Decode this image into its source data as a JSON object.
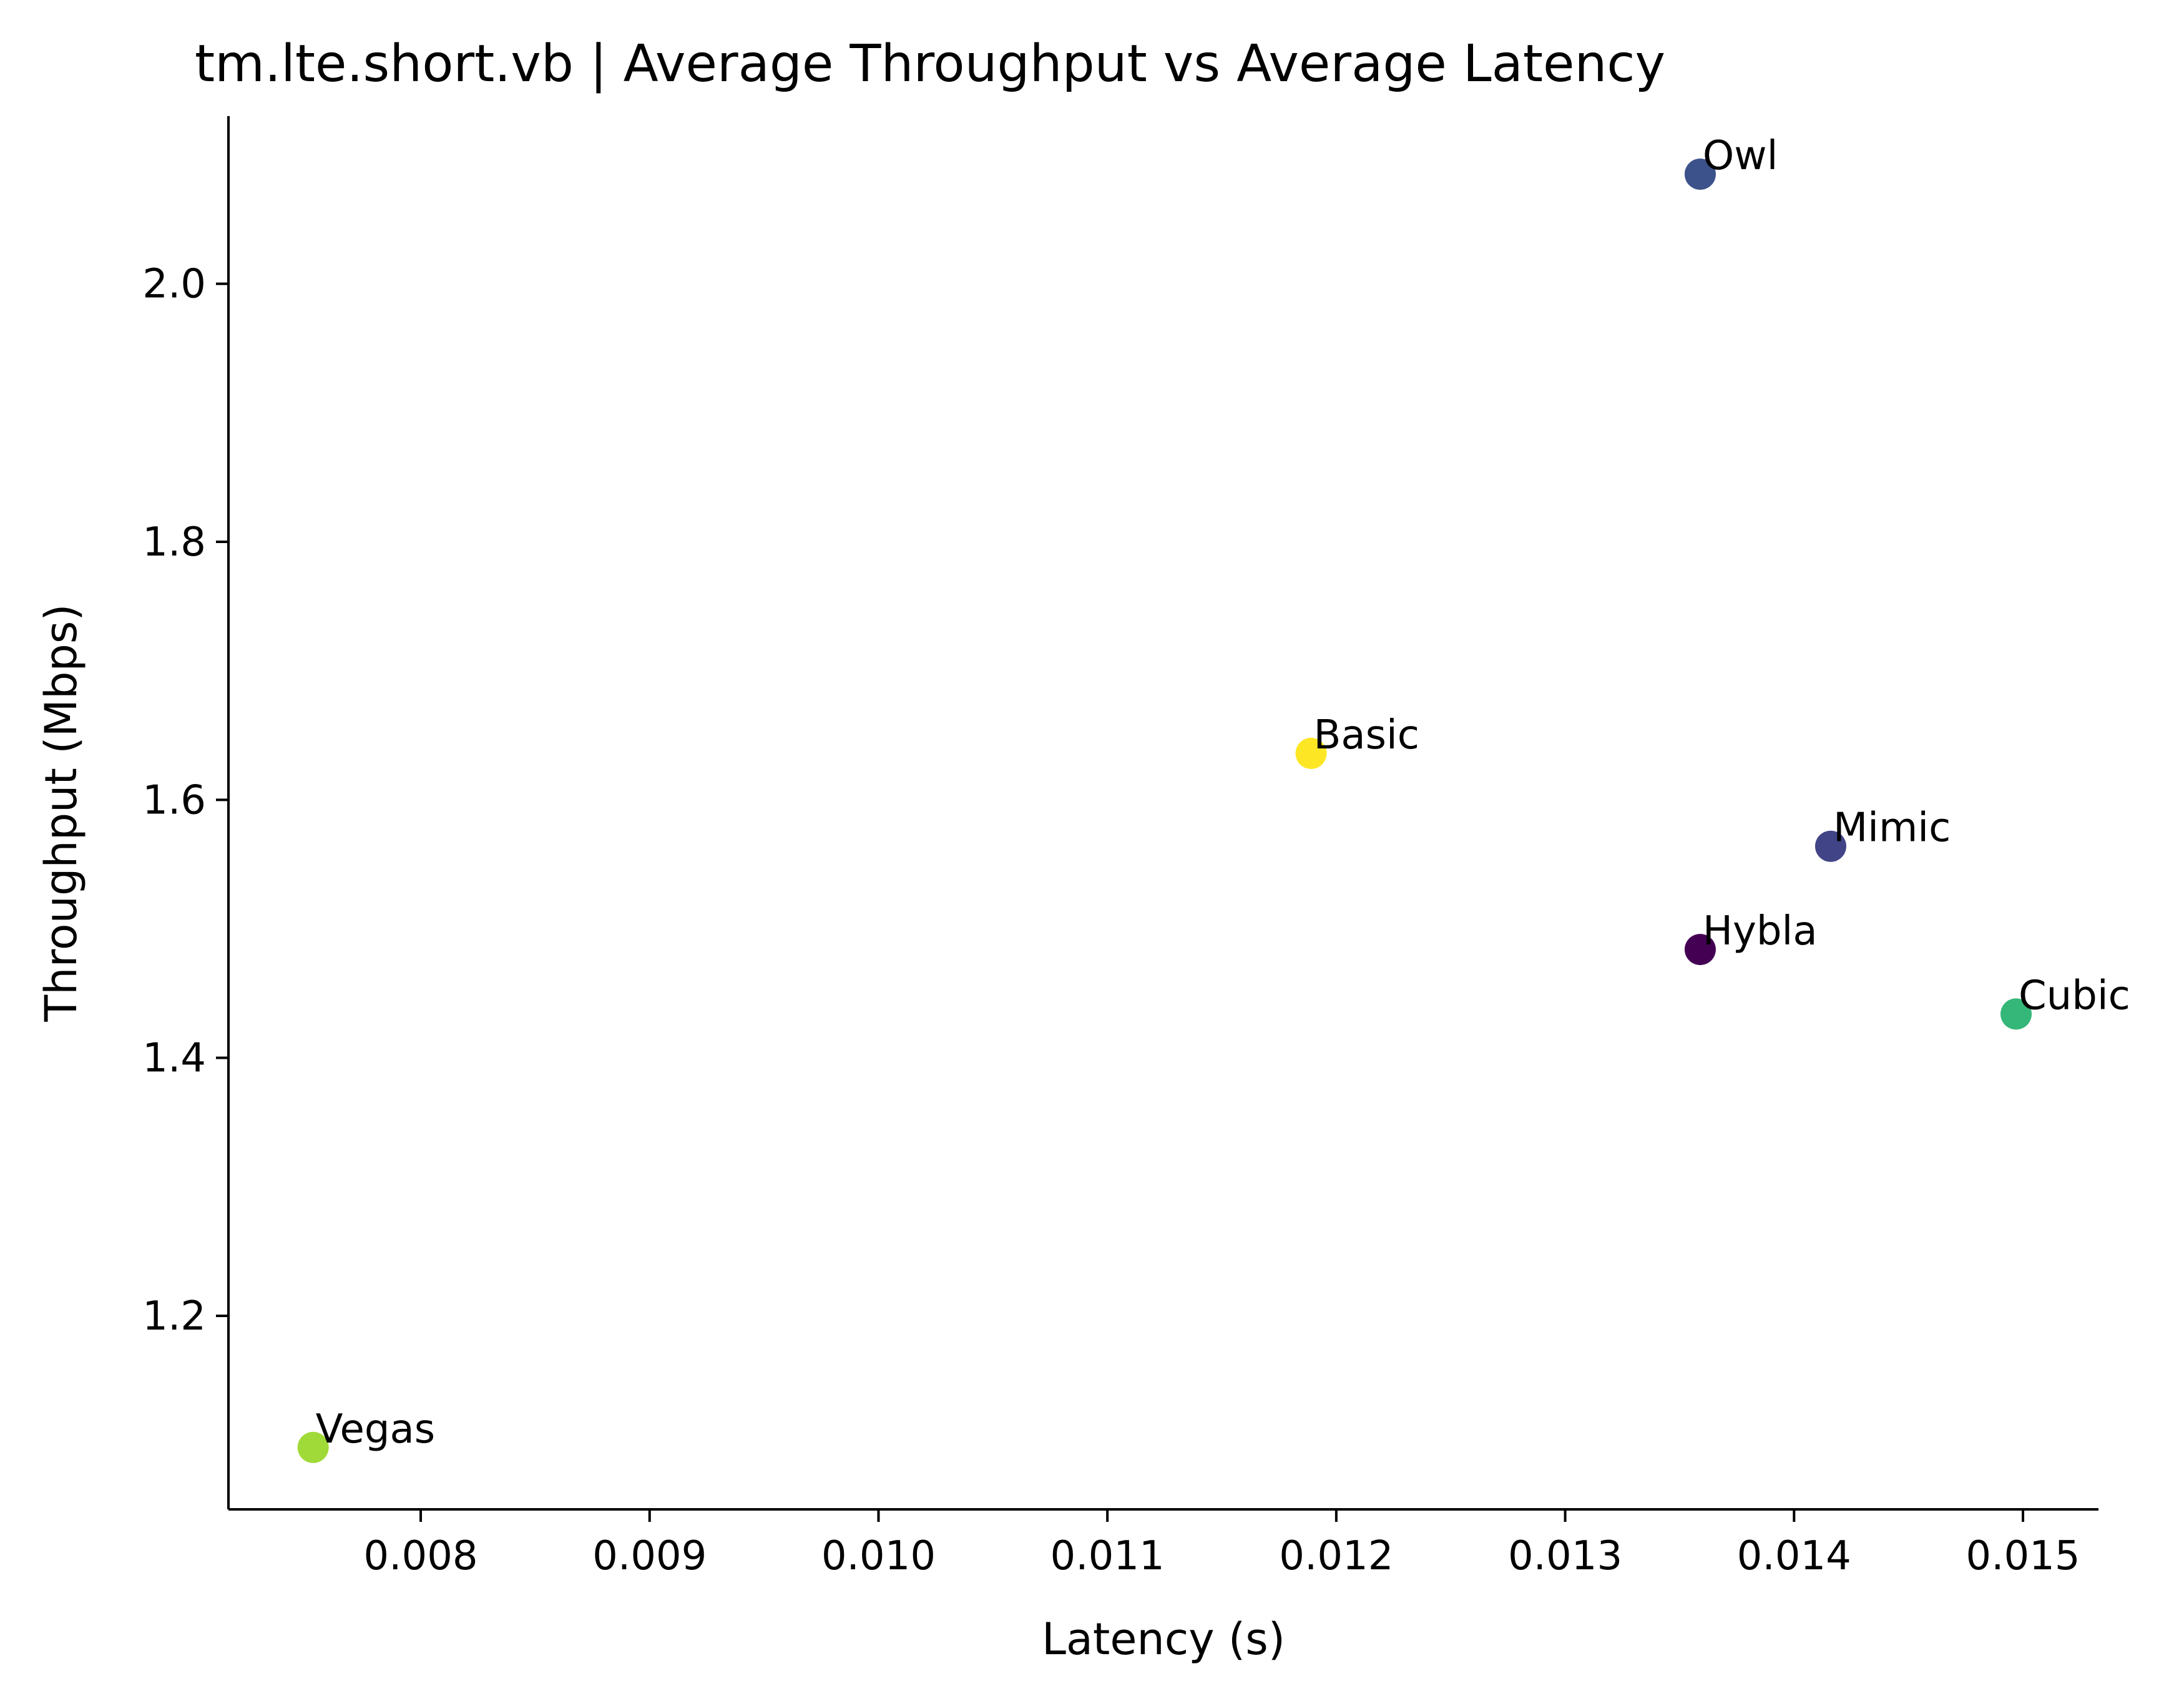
{
  "chart_data": {
    "type": "scatter",
    "title": "tm.lte.short.vb | Average Throughput vs Average Latency",
    "xlabel": "Latency (s)",
    "ylabel": "Throughput (Mbps)",
    "xlim": [
      0.00716,
      0.01533
    ],
    "ylim": [
      1.05,
      2.13
    ],
    "xticks": [
      0.008,
      0.009,
      0.01,
      0.011,
      0.012,
      0.013,
      0.014,
      0.015
    ],
    "xtick_labels": [
      "0.008",
      "0.009",
      "0.010",
      "0.011",
      "0.012",
      "0.013",
      "0.014",
      "0.015"
    ],
    "yticks": [
      1.2,
      1.4,
      1.6,
      1.8,
      2.0
    ],
    "ytick_labels": [
      "1.2",
      "1.4",
      "1.6",
      "1.8",
      "2.0"
    ],
    "grid": false,
    "points": [
      {
        "label": "Owl",
        "x": 0.01359,
        "y": 2.085,
        "color": "#3b528b"
      },
      {
        "label": "Basic",
        "x": 0.01189,
        "y": 1.636,
        "color": "#fde725"
      },
      {
        "label": "Mimic",
        "x": 0.01416,
        "y": 1.564,
        "color": "#414487"
      },
      {
        "label": "Hybla",
        "x": 0.01359,
        "y": 1.484,
        "color": "#440154"
      },
      {
        "label": "Cubic",
        "x": 0.01497,
        "y": 1.434,
        "color": "#35b779"
      },
      {
        "label": "Vegas",
        "x": 0.00753,
        "y": 1.098,
        "color": "#a0da39"
      }
    ]
  }
}
